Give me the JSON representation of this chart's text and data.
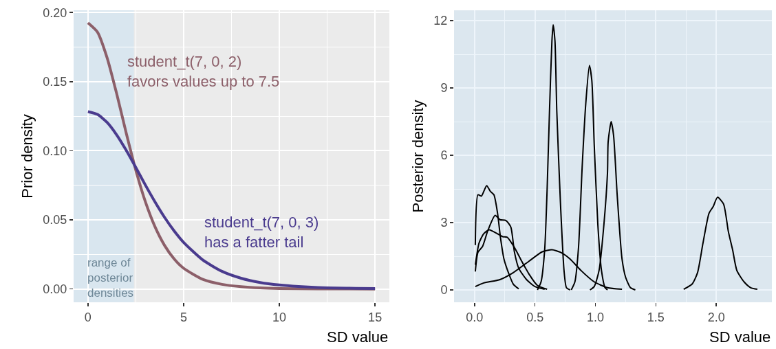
{
  "chart_data": [
    {
      "type": "line",
      "ylabel": "Prior density",
      "xlabel": "SD value",
      "grid": true,
      "xlim": [
        -0.75,
        15.75
      ],
      "ylim": [
        -0.0096,
        0.2016
      ],
      "xticks": [
        0,
        5,
        10,
        15
      ],
      "yticks": [
        {
          "value": 0,
          "label": "0.00"
        },
        {
          "value": 0.05,
          "label": "0.05"
        },
        {
          "value": 0.1,
          "label": "0.10"
        },
        {
          "value": 0.15,
          "label": "0.15"
        },
        {
          "value": 0.2,
          "label": "0.20"
        }
      ],
      "bands": [
        {
          "axis": "x",
          "from": -0.75,
          "to": 2.4,
          "label": "range of\nposterior\ndensities",
          "color": "#d9e6ef"
        }
      ],
      "annotations": [
        "student_t(7, 0, 2)\nfavors values up to 7.5",
        "student_t(7, 0, 3)\nhas a fatter tail"
      ],
      "series": [
        {
          "color": "#8c5f69",
          "x": [
            0,
            0.5,
            1,
            1.5,
            2,
            2.5,
            3,
            3.5,
            4,
            4.5,
            5,
            6,
            7,
            8,
            9,
            10,
            12,
            15
          ],
          "values": [
            0.1925,
            0.1858,
            0.1673,
            0.1413,
            0.1128,
            0.086,
            0.0631,
            0.0451,
            0.0316,
            0.0218,
            0.015,
            0.007,
            0.0034,
            0.0017,
            0.0008,
            0.0004,
            0.0001,
            0
          ]
        },
        {
          "color": "#4a3b8e",
          "x": [
            0,
            0.5,
            1,
            1.5,
            2,
            2.5,
            3,
            3.5,
            4,
            4.5,
            5,
            6,
            7,
            8,
            9,
            10,
            11,
            12,
            13,
            14,
            15
          ],
          "values": [
            0.1283,
            0.1263,
            0.1205,
            0.1115,
            0.1003,
            0.0879,
            0.0752,
            0.0631,
            0.0519,
            0.0421,
            0.0337,
            0.021,
            0.0128,
            0.0078,
            0.0047,
            0.0029,
            0.0018,
            0.0011,
            0.0007,
            0.0005,
            0.0003
          ]
        }
      ]
    },
    {
      "type": "line",
      "ylabel": "Posterior density",
      "xlabel": "SD value",
      "grid": true,
      "xlim": [
        -0.17,
        2.46
      ],
      "ylim": [
        -0.55,
        12.46
      ],
      "xticks": [
        {
          "value": 0,
          "label": "0.0"
        },
        {
          "value": 0.5,
          "label": "0.5"
        },
        {
          "value": 1,
          "label": "1.0"
        },
        {
          "value": 1.5,
          "label": "1.5"
        },
        {
          "value": 2,
          "label": "2.0"
        }
      ],
      "yticks": [
        0,
        3,
        6,
        9,
        12
      ],
      "series": [
        {
          "color": "#000000",
          "x": [
            0.006,
            0.028,
            0.056,
            0.1,
            0.13,
            0.16,
            0.19,
            0.215,
            0.243,
            0.28,
            0.32,
            0.365
          ],
          "values": [
            2.0,
            4.24,
            4.18,
            4.65,
            4.4,
            4.24,
            3.42,
            2.3,
            1.38,
            0.77,
            0.26,
            0.05
          ]
        },
        {
          "color": "#000000",
          "x": [
            0.006,
            0.028,
            0.066,
            0.11,
            0.17,
            0.21,
            0.26,
            0.3,
            0.33,
            0.365,
            0.43,
            0.5,
            0.58
          ],
          "values": [
            0.82,
            1.68,
            1.94,
            2.65,
            3.32,
            3.13,
            3.09,
            2.8,
            1.68,
            0.97,
            0.46,
            0.15,
            0.03
          ]
        },
        {
          "color": "#000000",
          "x": [
            0.006,
            0.037,
            0.075,
            0.12,
            0.19,
            0.234,
            0.27,
            0.33,
            0.38,
            0.45,
            0.52,
            0.6
          ],
          "values": [
            1.12,
            2.09,
            2.5,
            2.68,
            2.5,
            2.37,
            2.35,
            1.89,
            1.38,
            0.71,
            0.2,
            0.03
          ]
        },
        {
          "color": "#000000",
          "x": [
            0.006,
            0.075,
            0.21,
            0.32,
            0.45,
            0.56,
            0.64,
            0.71,
            0.79,
            0.88,
            0.99,
            1.1,
            1.22
          ],
          "values": [
            0.15,
            0.31,
            0.46,
            0.77,
            1.28,
            1.7,
            1.79,
            1.68,
            1.38,
            0.87,
            0.36,
            0.1,
            0.03
          ]
        },
        {
          "color": "#000000",
          "x": [
            0.52,
            0.55,
            0.58,
            0.6,
            0.62,
            0.64,
            0.65,
            0.665,
            0.68,
            0.71,
            0.74,
            0.76,
            0.79
          ],
          "values": [
            0,
            0.36,
            1.79,
            4.44,
            8.0,
            11.1,
            11.82,
            11.1,
            8.0,
            3.93,
            0.87,
            0.1,
            0
          ]
        },
        {
          "color": "#000000",
          "x": [
            0.8,
            0.83,
            0.86,
            0.89,
            0.92,
            0.95,
            0.97,
            0.99,
            1.02,
            1.05,
            1.08,
            1.1
          ],
          "values": [
            0,
            0.36,
            1.89,
            5.46,
            8.3,
            10.0,
            9.34,
            6.48,
            2.91,
            0.87,
            0.1,
            0
          ]
        },
        {
          "color": "#000000",
          "x": [
            0.955,
            0.99,
            1.03,
            1.07,
            1.1,
            1.105,
            1.13,
            1.15,
            1.18,
            1.22,
            1.25,
            1.29,
            1.33
          ],
          "values": [
            0,
            0.15,
            0.87,
            2.91,
            5.26,
            6.58,
            7.5,
            6.89,
            4.23,
            1.38,
            0.56,
            0.1,
            0
          ]
        },
        {
          "color": "#000000",
          "x": [
            1.73,
            1.8,
            1.845,
            1.89,
            1.94,
            1.975,
            2.01,
            2.06,
            2.1,
            2.135,
            2.17,
            2.23,
            2.285,
            2.34
          ],
          "values": [
            0.03,
            0.26,
            0.77,
            2.09,
            3.42,
            3.72,
            4.13,
            3.83,
            2.6,
            1.79,
            0.87,
            0.36,
            0.1,
            0.03
          ]
        }
      ]
    }
  ]
}
